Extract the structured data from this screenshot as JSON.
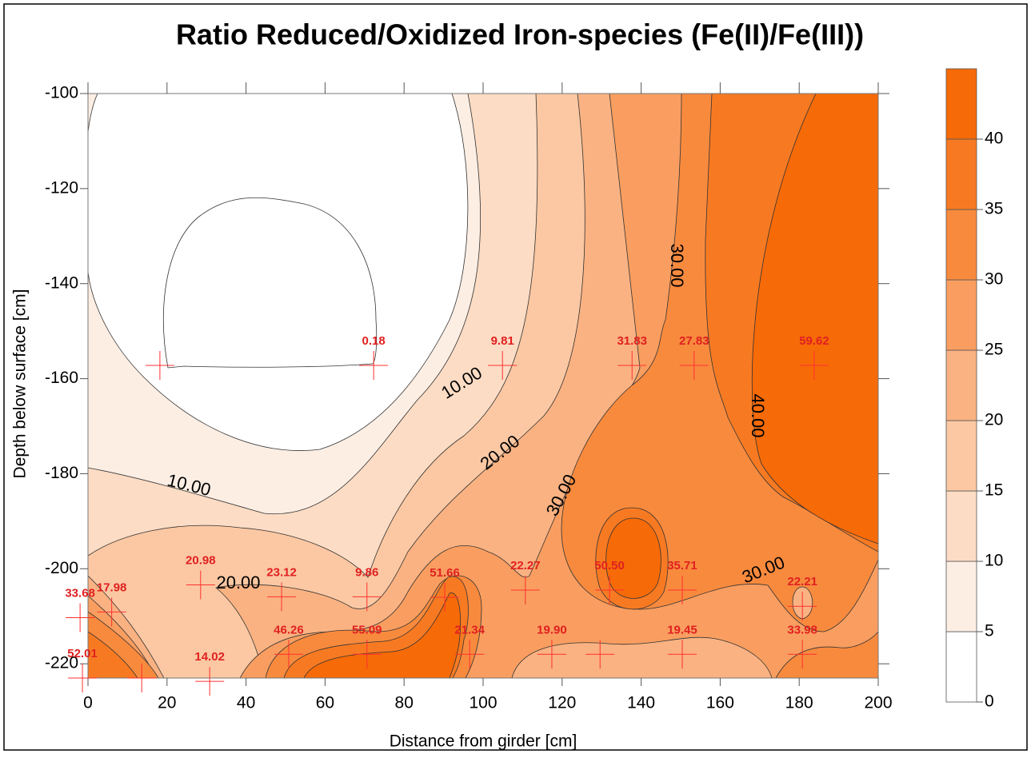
{
  "chart_data": {
    "type": "contour",
    "title": "Ratio Reduced/Oxidized Iron-species (Fe(II)/Fe(III))",
    "xlabel": "Distance from girder [cm]",
    "ylabel": "Depth below surface [cm]",
    "xlim": [
      0,
      200
    ],
    "ylim": [
      -223,
      -100
    ],
    "xticks": [
      0,
      20,
      40,
      60,
      80,
      100,
      120,
      140,
      160,
      180,
      200
    ],
    "yticks": [
      -100,
      -120,
      -140,
      -160,
      -180,
      -200,
      -220
    ],
    "colorbar": {
      "levels": [
        0,
        5,
        10,
        15,
        20,
        25,
        30,
        35,
        40,
        45
      ],
      "ticks": [
        0,
        5,
        10,
        15,
        20,
        25,
        30,
        35,
        40
      ],
      "colors": [
        "#ffffff",
        "#fdeee4",
        "#fcdcc4",
        "#fbc8a3",
        "#fab282",
        "#f99e60",
        "#f88a3e",
        "#f77a22",
        "#f66a08"
      ]
    },
    "contour_labels": [
      {
        "value": 10,
        "label": "10.00"
      },
      {
        "value": 10,
        "label": "10.00"
      },
      {
        "value": 20,
        "label": "20.00"
      },
      {
        "value": 20,
        "label": "20.00"
      },
      {
        "value": 30,
        "label": "30.00"
      },
      {
        "value": 30,
        "label": "30.00"
      },
      {
        "value": 30,
        "label": "30.00"
      },
      {
        "value": 40,
        "label": "40.00"
      }
    ],
    "points": {
      "marker_color": "#ff3030",
      "x": [
        18.2,
        72.3,
        104.9,
        137.7,
        153.4,
        183.8,
        28.5,
        -2,
        6,
        49,
        70.6,
        90.3,
        110.7,
        132,
        150.4,
        180.8,
        -1.4,
        13.6,
        30.8,
        50.8,
        70.6,
        96.6,
        117.4,
        129.6,
        150.4,
        180.8
      ],
      "y": [
        -157.2,
        -157.2,
        -157.2,
        -157.2,
        -157.2,
        -157.2,
        -203.4,
        -210.3,
        -209.1,
        -205.9,
        -205.9,
        -206,
        -204.5,
        -204.5,
        -204.5,
        -207.9,
        -223,
        -223,
        -223.7,
        -218,
        -218,
        -218,
        -218,
        -218,
        -218,
        -218
      ],
      "values": [
        null,
        0.18,
        9.81,
        31.83,
        27.83,
        59.62,
        20.98,
        33.68,
        17.98,
        23.12,
        9.86,
        51.66,
        22.27,
        50.5,
        35.71,
        22.21,
        52.01,
        null,
        14.02,
        46.26,
        55.09,
        21.34,
        19.9,
        null,
        19.45,
        33.98
      ],
      "value_labels": [
        null,
        "0.18",
        "9.81",
        "31.83",
        "27.83",
        "59.62",
        "20.98",
        "33.68",
        "17.98",
        "23.12",
        "9.86",
        "51.66",
        "22.27",
        "50.50",
        "35.71",
        "22.21",
        "52.01",
        null,
        "14.02",
        "46.26",
        "55.09",
        "21.34",
        "19.90",
        null,
        "19.45",
        "33.98"
      ]
    }
  }
}
